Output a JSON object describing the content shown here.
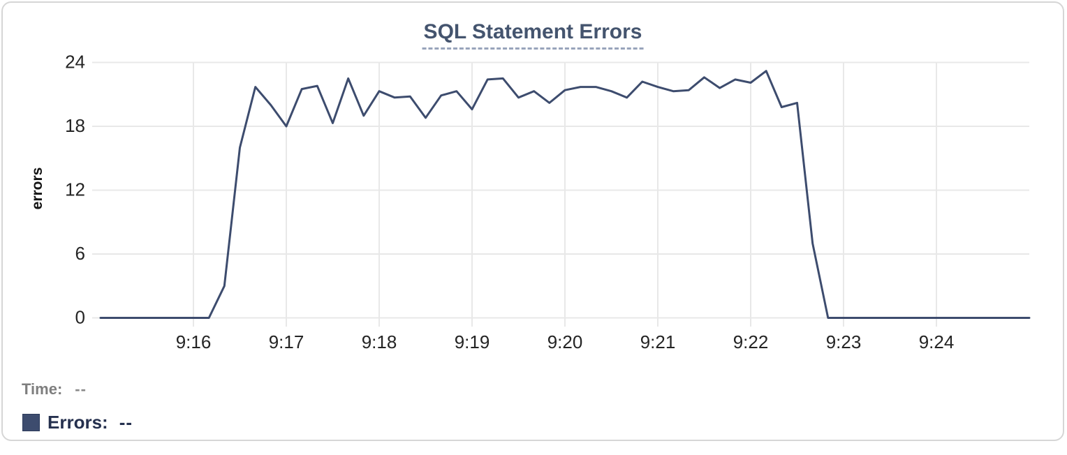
{
  "header": {
    "title": "SQL Statement Errors"
  },
  "readout": {
    "time_label": "Time:",
    "time_value": "--",
    "errors_label": "Errors:",
    "errors_value": "--",
    "swatch_color": "#3d4c6e"
  },
  "chart_data": {
    "type": "line",
    "title": "SQL Statement Errors",
    "xlabel": "",
    "ylabel": "errors",
    "grid": true,
    "legend_position": "bottom-left",
    "ylim": [
      0,
      24
    ],
    "y_ticks": [
      0,
      6,
      12,
      18,
      24
    ],
    "x_ticks": [
      "9:16",
      "9:17",
      "9:18",
      "9:19",
      "9:20",
      "9:21",
      "9:22",
      "9:23",
      "9:24"
    ],
    "x_range": [
      "9:15:00",
      "9:25:00"
    ],
    "sample_interval_seconds": 10,
    "series": [
      {
        "name": "Errors",
        "color": "#3d4c6e",
        "x": [
          "9:15:00",
          "9:15:10",
          "9:15:20",
          "9:15:30",
          "9:15:40",
          "9:15:50",
          "9:16:00",
          "9:16:10",
          "9:16:20",
          "9:16:30",
          "9:16:40",
          "9:16:50",
          "9:17:00",
          "9:17:10",
          "9:17:20",
          "9:17:30",
          "9:17:40",
          "9:17:50",
          "9:18:00",
          "9:18:10",
          "9:18:20",
          "9:18:30",
          "9:18:40",
          "9:18:50",
          "9:19:00",
          "9:19:10",
          "9:19:20",
          "9:19:30",
          "9:19:40",
          "9:19:50",
          "9:20:00",
          "9:20:10",
          "9:20:20",
          "9:20:30",
          "9:20:40",
          "9:20:50",
          "9:21:00",
          "9:21:10",
          "9:21:20",
          "9:21:30",
          "9:21:40",
          "9:21:50",
          "9:22:00",
          "9:22:10",
          "9:22:20",
          "9:22:30",
          "9:22:40",
          "9:22:50",
          "9:23:00",
          "9:23:10",
          "9:23:20",
          "9:23:30",
          "9:23:40",
          "9:23:50",
          "9:24:00",
          "9:24:10",
          "9:24:20",
          "9:24:30",
          "9:24:40",
          "9:24:50",
          "9:25:00"
        ],
        "values": [
          0,
          0,
          0,
          0,
          0,
          0,
          0,
          0,
          3,
          16,
          21.7,
          20,
          18,
          21.5,
          21.8,
          18.3,
          22.5,
          19,
          21.3,
          20.7,
          20.8,
          18.8,
          20.9,
          21.3,
          19.6,
          22.4,
          22.5,
          20.7,
          21.3,
          20.2,
          21.4,
          21.7,
          21.7,
          21.3,
          20.7,
          22.2,
          21.7,
          21.3,
          21.4,
          22.6,
          21.6,
          22.4,
          22.1,
          23.2,
          19.8,
          20.2,
          7,
          0,
          0,
          0,
          0,
          0,
          0,
          0,
          0,
          0,
          0,
          0,
          0,
          0,
          0
        ]
      }
    ]
  }
}
